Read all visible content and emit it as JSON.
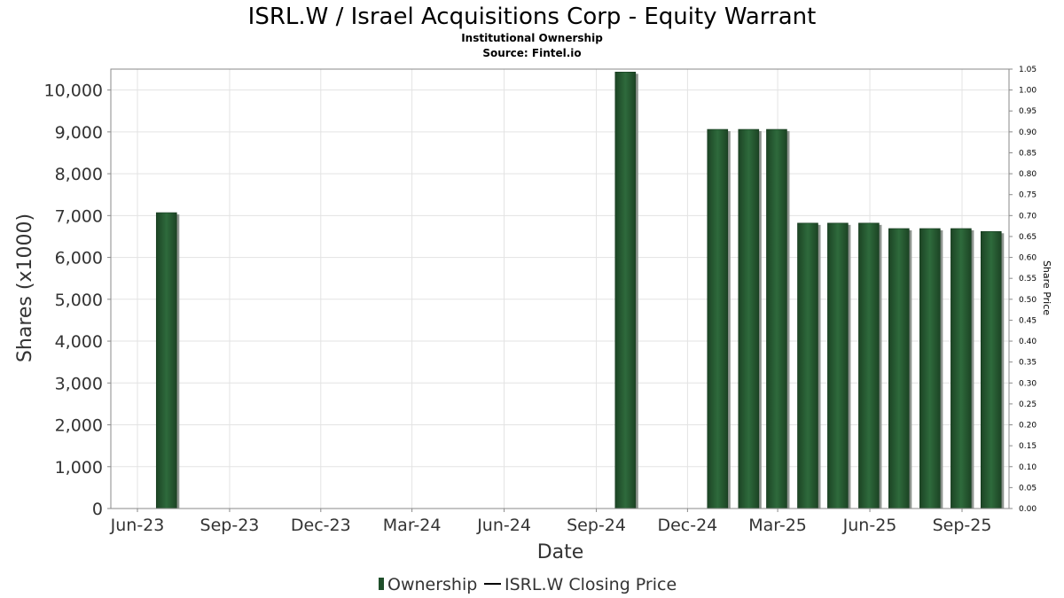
{
  "chart_data": {
    "type": "bar",
    "title": "ISRL.W / Israel Acquisitions Corp - Equity Warrant",
    "subtitle_lines": [
      "Institutional Ownership",
      "Source: Fintel.io"
    ],
    "xlabel": "Date",
    "ylabel": "Shares (x1000)",
    "y2label": "Share Price",
    "ylim": [
      0,
      10500
    ],
    "y2lim": [
      0,
      1.05
    ],
    "yticks": [
      "0",
      "1,000",
      "2,000",
      "3,000",
      "4,000",
      "5,000",
      "6,000",
      "7,000",
      "8,000",
      "9,000",
      "10,000"
    ],
    "y2ticks": [
      "0.00",
      "0.05",
      "0.10",
      "0.15",
      "0.20",
      "0.25",
      "0.30",
      "0.35",
      "0.40",
      "0.45",
      "0.50",
      "0.55",
      "0.60",
      "0.65",
      "0.70",
      "0.75",
      "0.80",
      "0.85",
      "0.90",
      "0.95",
      "1.00",
      "1.05"
    ],
    "xticks": [
      "Jun-23",
      "Sep-23",
      "Dec-23",
      "Mar-24",
      "Jun-24",
      "Sep-24",
      "Dec-24",
      "Mar-25",
      "Jun-25",
      "Sep-25"
    ],
    "grid": true,
    "legend_position": "bottom",
    "series": [
      {
        "name": "Ownership",
        "color": "#1f4f2a",
        "points": [
          {
            "date": "2023-06-30",
            "value": 7070
          },
          {
            "date": "2024-09-30",
            "value": 10430
          },
          {
            "date": "2024-12-31",
            "value": 9060
          },
          {
            "date": "2025-01-31",
            "value": 9060
          },
          {
            "date": "2025-02-28",
            "value": 9060
          },
          {
            "date": "2025-03-31",
            "value": 6820
          },
          {
            "date": "2025-04-30",
            "value": 6820
          },
          {
            "date": "2025-05-31",
            "value": 6820
          },
          {
            "date": "2025-06-30",
            "value": 6690
          },
          {
            "date": "2025-07-31",
            "value": 6690
          },
          {
            "date": "2025-08-31",
            "value": 6690
          },
          {
            "date": "2025-09-30",
            "value": 6620
          }
        ]
      },
      {
        "name": "ISRL.W Closing Price",
        "color": "#000000",
        "points": []
      }
    ]
  }
}
